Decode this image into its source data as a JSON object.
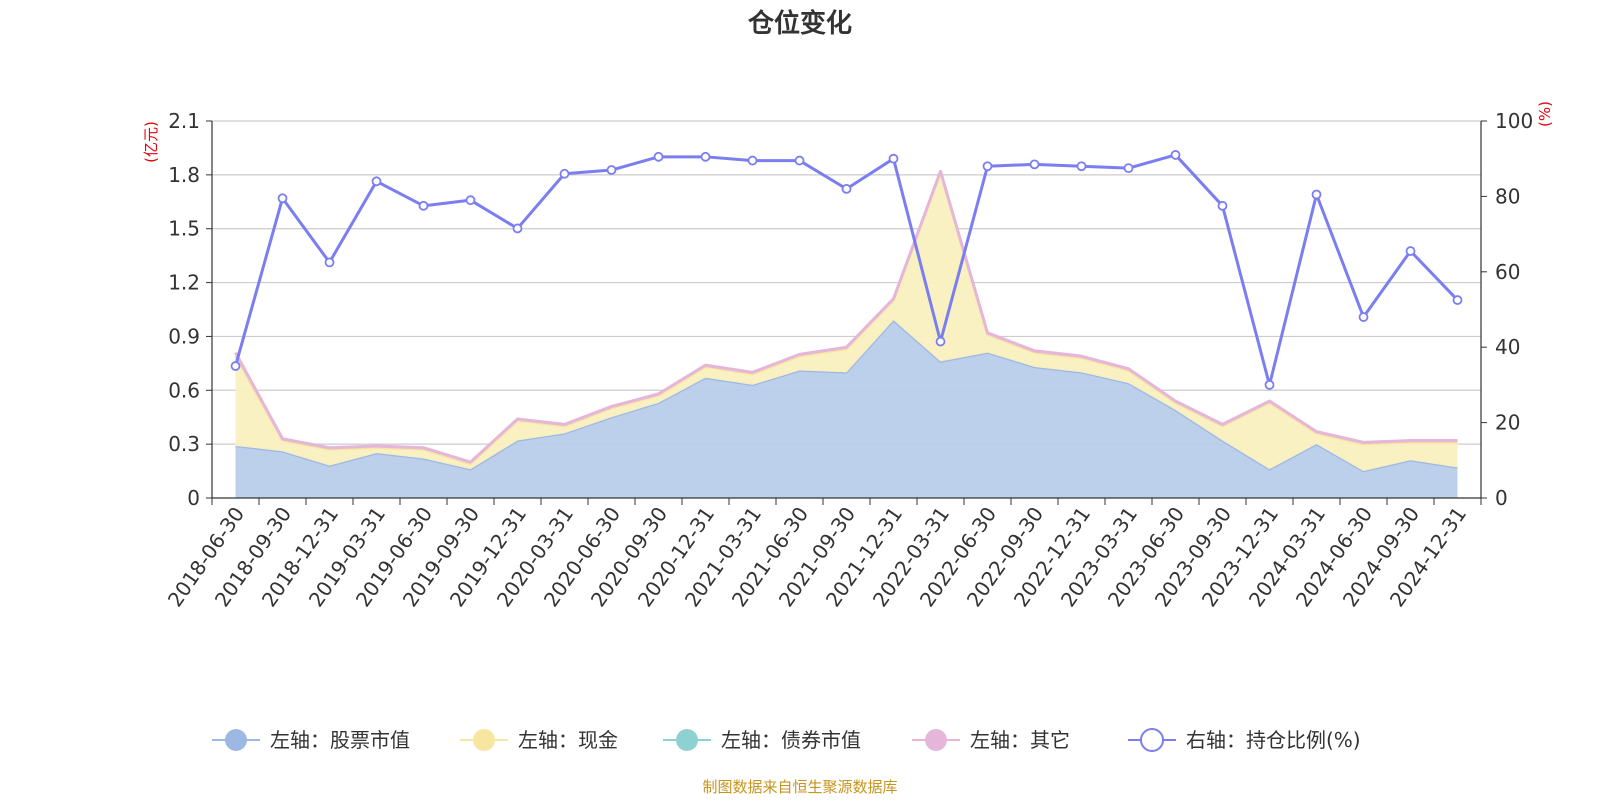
{
  "title": "仓位变化",
  "source": "制图数据来自恒生聚源数据库",
  "units": {
    "left": "(亿元)",
    "right": "(%)"
  },
  "colors": {
    "stock": "#9db8e3",
    "stock_fill": "#b8cdea",
    "cash": "#f7e6a0",
    "cash_fill": "#faf0c0",
    "bond": "#8fd1d1",
    "other": "#e5b6da",
    "ratio": "#7b7ef0",
    "grid": "#cccccc",
    "axis": "#333333",
    "unit": "#e8000b"
  },
  "legend": [
    {
      "label": "左轴：股票市值",
      "color": "#9db8e3",
      "kind": "filled"
    },
    {
      "label": "左轴：现金",
      "color": "#f7e6a0",
      "kind": "filled"
    },
    {
      "label": "左轴：债券市值",
      "color": "#8fd1d1",
      "kind": "filled"
    },
    {
      "label": "左轴：其它",
      "color": "#e5b6da",
      "kind": "filled"
    },
    {
      "label": "右轴：持仓比例(%)",
      "color": "#7b7ef0",
      "kind": "hollow"
    }
  ],
  "chart_data": {
    "type": "area",
    "title": "仓位变化",
    "categories": [
      "2018-06-30",
      "2018-09-30",
      "2018-12-31",
      "2019-03-31",
      "2019-06-30",
      "2019-09-30",
      "2019-12-31",
      "2020-03-31",
      "2020-06-30",
      "2020-09-30",
      "2020-12-31",
      "2021-03-31",
      "2021-06-30",
      "2021-09-30",
      "2021-12-31",
      "2022-03-31",
      "2022-06-30",
      "2022-09-30",
      "2022-12-31",
      "2023-03-31",
      "2023-06-30",
      "2023-09-30",
      "2023-12-31",
      "2024-03-31",
      "2024-06-30",
      "2024-09-30",
      "2024-12-31"
    ],
    "left_axis": {
      "label": "(亿元)",
      "ylim": [
        0,
        2.1
      ],
      "ticks": [
        "0",
        "0.3",
        "0.6",
        "0.9",
        "1.2",
        "1.5",
        "1.8",
        "2.1"
      ]
    },
    "right_axis": {
      "label": "(%)",
      "ylim": [
        0,
        100
      ],
      "ticks": [
        "0",
        "20",
        "40",
        "60",
        "80",
        "100"
      ]
    },
    "grid": true,
    "legend_position": "bottom",
    "series": [
      {
        "name": "左轴：股票市值",
        "axis": "left",
        "type": "stacked-area",
        "values": [
          0.29,
          0.26,
          0.18,
          0.25,
          0.22,
          0.16,
          0.32,
          0.36,
          0.45,
          0.53,
          0.67,
          0.63,
          0.71,
          0.7,
          0.99,
          0.76,
          0.81,
          0.73,
          0.7,
          0.64,
          0.49,
          0.32,
          0.16,
          0.3,
          0.15,
          0.21,
          0.17
        ]
      },
      {
        "name": "左轴：现金",
        "axis": "left",
        "type": "stacked-area",
        "values": [
          0.5,
          0.06,
          0.09,
          0.03,
          0.05,
          0.03,
          0.11,
          0.04,
          0.05,
          0.04,
          0.06,
          0.06,
          0.08,
          0.13,
          0.11,
          1.05,
          0.1,
          0.08,
          0.08,
          0.07,
          0.04,
          0.08,
          0.37,
          0.06,
          0.15,
          0.1,
          0.14
        ]
      },
      {
        "name": "左轴：债券市值",
        "axis": "left",
        "type": "stacked-area",
        "values": [
          0,
          0,
          0,
          0,
          0,
          0,
          0,
          0,
          0,
          0,
          0,
          0,
          0,
          0,
          0,
          0,
          0,
          0,
          0,
          0,
          0,
          0,
          0,
          0,
          0,
          0,
          0
        ]
      },
      {
        "name": "左轴：其它",
        "axis": "left",
        "type": "stacked-area",
        "values": [
          0.02,
          0.01,
          0.01,
          0.01,
          0.01,
          0.01,
          0.01,
          0.01,
          0.01,
          0.01,
          0.01,
          0.01,
          0.01,
          0.01,
          0.01,
          0.01,
          0.01,
          0.01,
          0.01,
          0.01,
          0.01,
          0.01,
          0.01,
          0.01,
          0.01,
          0.01,
          0.01
        ]
      },
      {
        "name": "右轴：持仓比例(%)",
        "axis": "right",
        "type": "line",
        "values": [
          35,
          79.5,
          62.5,
          84,
          77.5,
          79,
          71.5,
          86,
          87,
          90.5,
          90.5,
          89.5,
          89.5,
          82,
          90,
          41.5,
          88,
          88.5,
          88,
          87.5,
          91,
          77.5,
          30,
          80.5,
          48,
          65.5,
          52.5
        ]
      }
    ]
  }
}
